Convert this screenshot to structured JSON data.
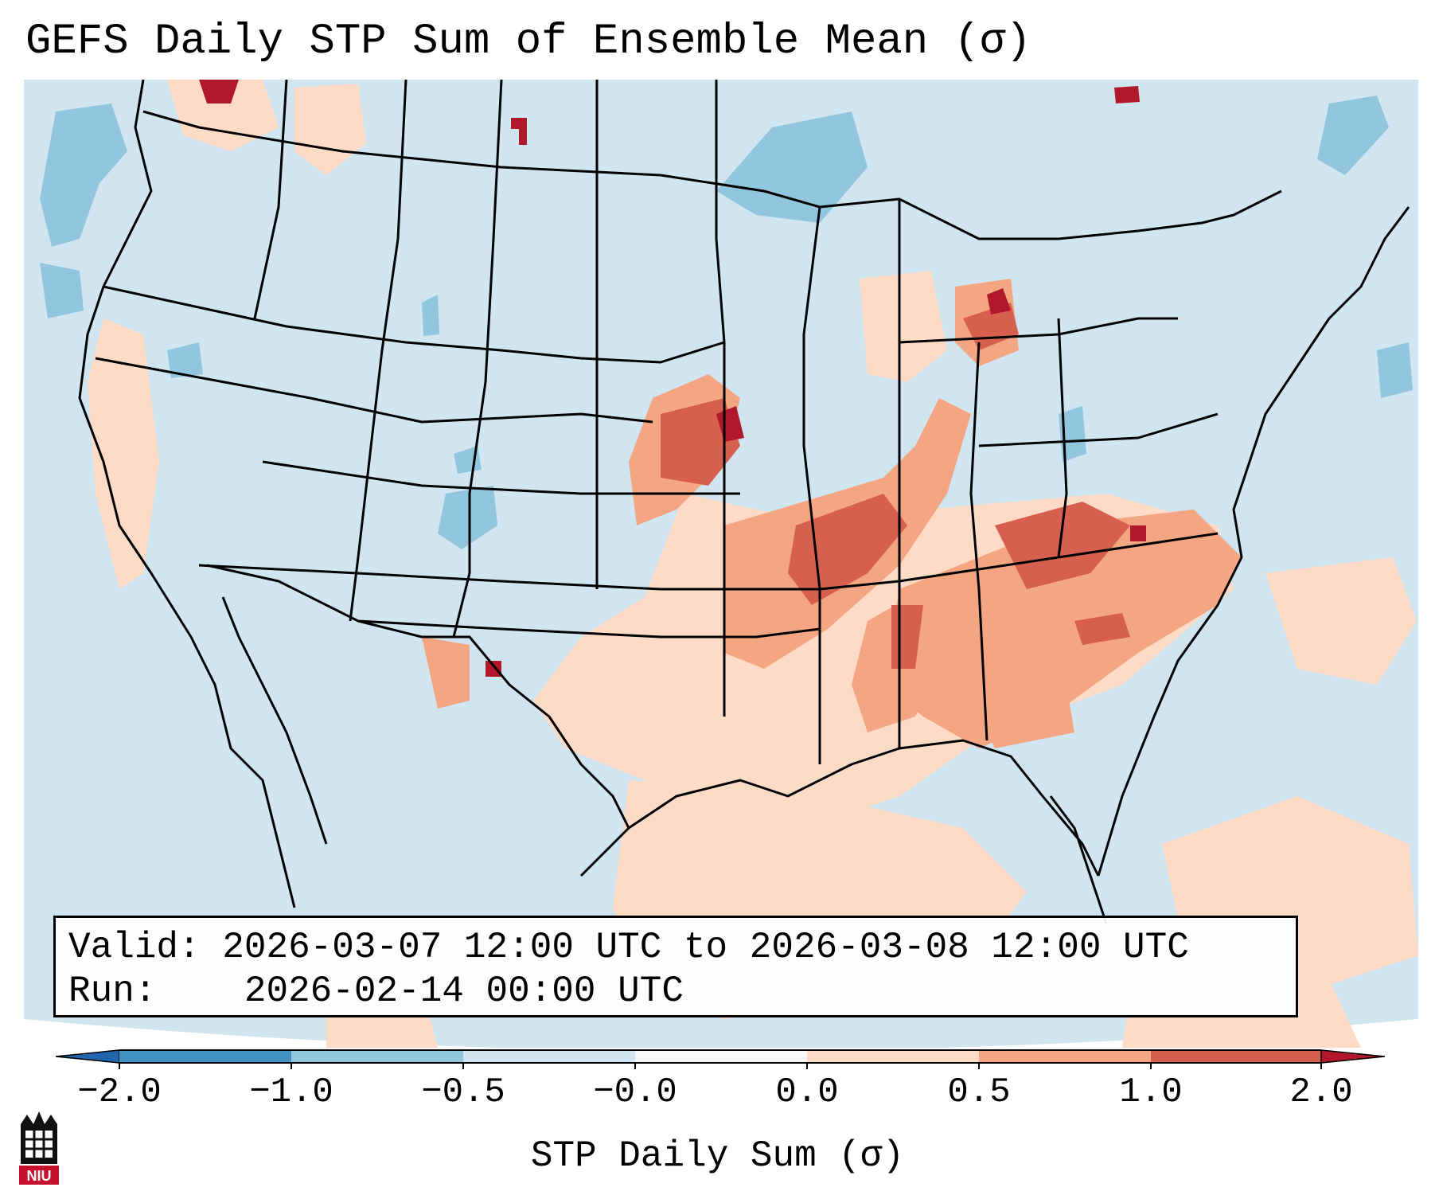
{
  "title": "GEFS Daily STP Sum of Ensemble Mean (σ)",
  "info": {
    "valid_label": "Valid:",
    "valid_value": "2026-03-07 12:00 UTC to 2026-03-08 12:00 UTC",
    "run_label": "Run:",
    "run_value": "2026-02-14 00:00 UTC"
  },
  "colorbar": {
    "label": "STP Daily Sum (σ)",
    "ticks": [
      "−2.0",
      "−1.0",
      "−0.5",
      "−0.0",
      "0.0",
      "0.5",
      "1.0",
      "2.0"
    ],
    "colors": {
      "under": "#2166ac",
      "bins": [
        "#4393c3",
        "#92c5de",
        "#d1e5f0",
        "#f7f7f7",
        "#fddbc7",
        "#f4a582",
        "#d6604d"
      ],
      "over": "#b2182b"
    }
  },
  "map": {
    "projection": "lambert-conformal",
    "region": "CONUS",
    "ocean_color": "#d1e5f0",
    "boundary_color": "#000000"
  },
  "logo": {
    "text": "NIU",
    "color": "#c8102e"
  }
}
